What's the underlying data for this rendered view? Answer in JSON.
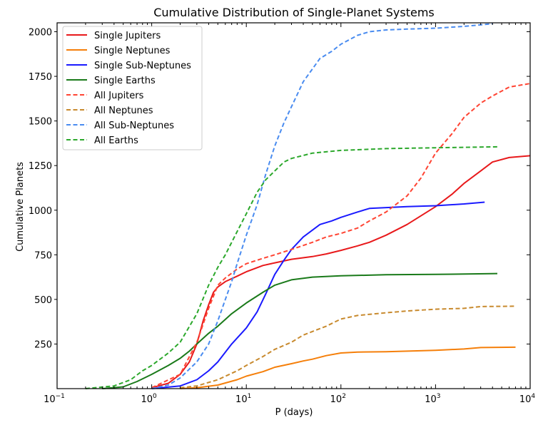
{
  "chart_data": {
    "type": "line",
    "title": "Cumulative Distribution of Single-Planet Systems",
    "xlabel": "P (days)",
    "ylabel": "Cumulative Planets",
    "xscale": "log",
    "xlim": [
      0.1,
      10000
    ],
    "ylim": [
      0,
      2050
    ],
    "xticks": [
      {
        "v": 0.1,
        "base": "10",
        "exp": "−1"
      },
      {
        "v": 1,
        "base": "10",
        "exp": "0"
      },
      {
        "v": 10,
        "base": "10",
        "exp": "1"
      },
      {
        "v": 100,
        "base": "10",
        "exp": "2"
      },
      {
        "v": 1000,
        "base": "10",
        "exp": "3"
      },
      {
        "v": 10000,
        "base": "10",
        "exp": "4"
      }
    ],
    "yticks": [
      {
        "v": 250,
        "label": "250"
      },
      {
        "v": 500,
        "label": "500"
      },
      {
        "v": 750,
        "label": "750"
      },
      {
        "v": 1000,
        "label": "1000"
      },
      {
        "v": 1250,
        "label": "1250"
      },
      {
        "v": 1500,
        "label": "1500"
      },
      {
        "v": 1750,
        "label": "1750"
      },
      {
        "v": 2000,
        "label": "2000"
      }
    ],
    "grid": false,
    "legend_position": "top-left",
    "series": [
      {
        "name": "Single Jupiters",
        "color": "#e8191b",
        "dash": false,
        "x": [
          1,
          1.5,
          2,
          2.5,
          3,
          3.5,
          4,
          4.5,
          5,
          6,
          8,
          10,
          15,
          20,
          30,
          50,
          70,
          100,
          150,
          200,
          300,
          500,
          1000,
          1500,
          2000,
          3000,
          4000,
          6000,
          10000
        ],
        "y": [
          5,
          30,
          80,
          150,
          250,
          380,
          470,
          540,
          570,
          600,
          630,
          655,
          690,
          705,
          725,
          740,
          755,
          775,
          800,
          820,
          860,
          920,
          1020,
          1090,
          1150,
          1220,
          1270,
          1295,
          1305
        ]
      },
      {
        "name": "Single Neptunes",
        "color": "#f57f0a",
        "dash": false,
        "x": [
          2,
          3,
          5,
          8,
          10,
          15,
          20,
          30,
          40,
          50,
          70,
          100,
          150,
          300,
          1000,
          2000,
          3000,
          7000
        ],
        "y": [
          0,
          5,
          20,
          50,
          70,
          95,
          120,
          140,
          155,
          165,
          185,
          200,
          205,
          207,
          215,
          222,
          230,
          232
        ]
      },
      {
        "name": "Single Sub-Neptunes",
        "color": "#1a1aff",
        "dash": false,
        "x": [
          1,
          2,
          3,
          4,
          5,
          7,
          10,
          13,
          16,
          20,
          25,
          30,
          40,
          60,
          80,
          100,
          150,
          200,
          500,
          1000,
          2000,
          3300
        ],
        "y": [
          0,
          15,
          50,
          100,
          150,
          250,
          340,
          430,
          530,
          640,
          720,
          780,
          850,
          920,
          940,
          960,
          990,
          1010,
          1020,
          1025,
          1035,
          1045
        ]
      },
      {
        "name": "Single Earths",
        "color": "#1a7a1a",
        "dash": false,
        "x": [
          0.3,
          0.5,
          0.7,
          1,
          1.5,
          2,
          2.5,
          3,
          4,
          5,
          7,
          10,
          15,
          20,
          30,
          50,
          100,
          300,
          1000,
          4500
        ],
        "y": [
          0,
          10,
          40,
          80,
          130,
          170,
          210,
          250,
          310,
          350,
          420,
          480,
          540,
          580,
          610,
          625,
          632,
          638,
          640,
          645
        ]
      },
      {
        "name": "All Jupiters",
        "color": "#ff4433",
        "dash": true,
        "x": [
          1,
          2,
          3,
          4,
          5,
          6,
          8,
          10,
          15,
          20,
          30,
          50,
          70,
          100,
          150,
          200,
          300,
          500,
          700,
          1000,
          1500,
          2000,
          3000,
          4000,
          6000,
          10000
        ],
        "y": [
          5,
          80,
          260,
          450,
          580,
          620,
          670,
          700,
          730,
          750,
          780,
          820,
          850,
          870,
          900,
          940,
          990,
          1080,
          1180,
          1320,
          1430,
          1520,
          1600,
          1640,
          1690,
          1710
        ]
      },
      {
        "name": "All Neptunes",
        "color": "#c88a2e",
        "dash": true,
        "x": [
          2,
          3,
          5,
          8,
          10,
          15,
          20,
          30,
          40,
          70,
          100,
          150,
          300,
          500,
          1000,
          2000,
          3000,
          7000
        ],
        "y": [
          5,
          15,
          50,
          100,
          130,
          180,
          220,
          260,
          300,
          350,
          390,
          410,
          425,
          435,
          445,
          450,
          460,
          462
        ]
      },
      {
        "name": "All Sub-Neptunes",
        "color": "#4a8cf0",
        "dash": true,
        "x": [
          1,
          1.5,
          2,
          3,
          4,
          5,
          6,
          7,
          8,
          10,
          13,
          16,
          20,
          25,
          30,
          40,
          60,
          80,
          100,
          150,
          200,
          300,
          500,
          1000,
          2000,
          4000
        ],
        "y": [
          0,
          20,
          60,
          150,
          250,
          380,
          500,
          600,
          700,
          860,
          1030,
          1200,
          1360,
          1490,
          1580,
          1720,
          1850,
          1890,
          1930,
          1980,
          2000,
          2010,
          2015,
          2020,
          2030,
          2045
        ]
      },
      {
        "name": "All Earths",
        "color": "#2ca82c",
        "dash": true,
        "x": [
          0.2,
          0.4,
          0.6,
          0.8,
          1,
          1.5,
          2,
          3,
          4,
          5,
          6,
          8,
          10,
          13,
          16,
          20,
          25,
          30,
          50,
          100,
          300,
          1000,
          4500
        ],
        "y": [
          0,
          15,
          50,
          100,
          130,
          200,
          260,
          420,
          580,
          680,
          750,
          880,
          980,
          1100,
          1170,
          1220,
          1270,
          1290,
          1320,
          1335,
          1345,
          1350,
          1355
        ]
      }
    ]
  }
}
